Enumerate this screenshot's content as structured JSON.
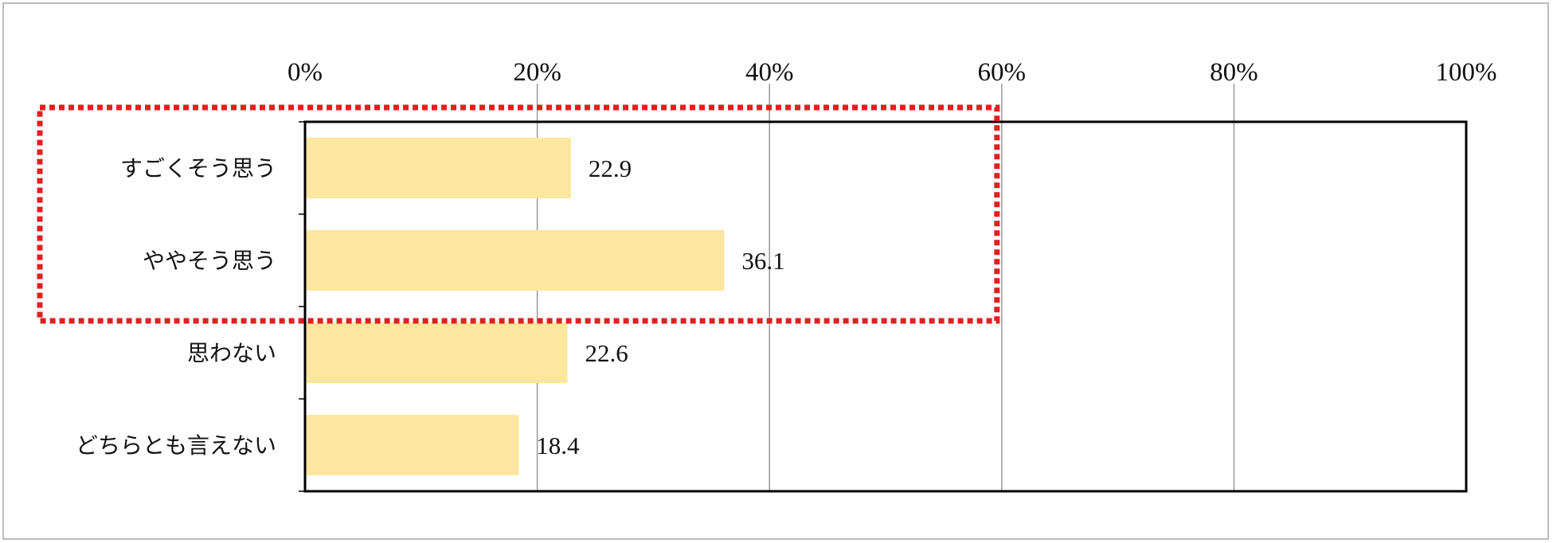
{
  "chart_data": {
    "type": "bar",
    "orientation": "horizontal",
    "categories": [
      "すごくそう思う",
      "ややそう思う",
      "思わない",
      "どちらとも言えない"
    ],
    "values": [
      22.9,
      36.1,
      22.6,
      18.4
    ],
    "value_labels": [
      "22.9",
      "36.1",
      "22.6",
      "18.4"
    ],
    "xlim": [
      0,
      100
    ],
    "x_ticks": [
      "0%",
      "20%",
      "40%",
      "60%",
      "80%",
      "100%"
    ],
    "x_tick_values": [
      0,
      20,
      40,
      60,
      80,
      100
    ],
    "x_axis_position": "top",
    "grid": true,
    "legend": "none",
    "highlight": {
      "description": "dotted red rectangle around first two categories",
      "categories": [
        "すごくそう思う",
        "ややそう思う"
      ],
      "x_extent": [
        0,
        60
      ]
    },
    "colors": {
      "bar": "#FDE69E",
      "grid": "#999999",
      "axis": "#000000",
      "highlight": "#E02020",
      "frame": "#BDBDBD"
    }
  }
}
